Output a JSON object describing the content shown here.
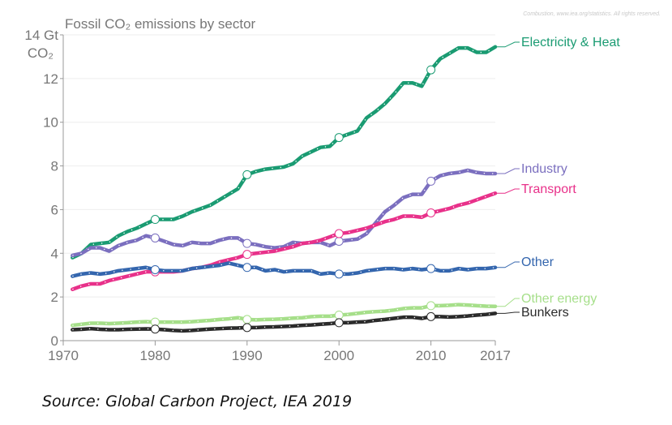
{
  "credit": "Combustion, www.iea.org/statistics. All rights reserved.",
  "source": "Source: Global Carbon Project, IEA 2019",
  "chart_data": {
    "type": "line",
    "title": "Fossil CO₂ emissions by sector",
    "ylabel_line1": "Gt",
    "ylabel_line2": "CO₂",
    "ylim": [
      0,
      14
    ],
    "xlim": [
      1970,
      2017
    ],
    "y_ticks": [
      "0",
      "2",
      "4",
      "6",
      "8",
      "10",
      "12",
      "14"
    ],
    "x_ticks": [
      "1970",
      "1980",
      "1990",
      "2000",
      "2010",
      "2017"
    ],
    "grid": true,
    "legend": "right (inline labels)",
    "x": [
      1971,
      1972,
      1973,
      1974,
      1975,
      1976,
      1977,
      1978,
      1979,
      1980,
      1981,
      1982,
      1983,
      1984,
      1985,
      1986,
      1987,
      1988,
      1989,
      1990,
      1991,
      1992,
      1993,
      1994,
      1995,
      1996,
      1997,
      1998,
      1999,
      2000,
      2001,
      2002,
      2003,
      2004,
      2005,
      2006,
      2007,
      2008,
      2009,
      2010,
      2011,
      2012,
      2013,
      2014,
      2015,
      2016,
      2017
    ],
    "series": [
      {
        "name": "Electricity & Heat",
        "color": "#1a9b72",
        "values": [
          3.8,
          4.0,
          4.4,
          4.45,
          4.5,
          4.8,
          5.0,
          5.15,
          5.35,
          5.55,
          5.55,
          5.55,
          5.7,
          5.9,
          6.05,
          6.2,
          6.45,
          6.7,
          6.95,
          7.6,
          7.75,
          7.85,
          7.9,
          7.95,
          8.1,
          8.45,
          8.65,
          8.85,
          8.9,
          9.3,
          9.45,
          9.6,
          10.2,
          10.5,
          10.85,
          11.3,
          11.8,
          11.8,
          11.65,
          12.4,
          12.9,
          13.15,
          13.4,
          13.4,
          13.2,
          13.2,
          13.45
        ]
      },
      {
        "name": "Industry",
        "color": "#7b6fbf",
        "values": [
          3.9,
          4.0,
          4.25,
          4.25,
          4.1,
          4.35,
          4.5,
          4.6,
          4.8,
          4.7,
          4.55,
          4.4,
          4.35,
          4.5,
          4.45,
          4.45,
          4.6,
          4.7,
          4.7,
          4.45,
          4.4,
          4.3,
          4.25,
          4.3,
          4.5,
          4.45,
          4.5,
          4.5,
          4.35,
          4.55,
          4.6,
          4.65,
          4.9,
          5.4,
          5.9,
          6.2,
          6.55,
          6.7,
          6.7,
          7.3,
          7.55,
          7.65,
          7.7,
          7.8,
          7.7,
          7.65,
          7.65
        ]
      },
      {
        "name": "Transport",
        "color": "#e8318a",
        "values": [
          2.35,
          2.5,
          2.6,
          2.6,
          2.75,
          2.85,
          2.95,
          3.05,
          3.15,
          3.15,
          3.15,
          3.15,
          3.2,
          3.3,
          3.35,
          3.45,
          3.6,
          3.7,
          3.8,
          3.95,
          4.0,
          4.05,
          4.1,
          4.2,
          4.3,
          4.45,
          4.5,
          4.6,
          4.75,
          4.9,
          4.95,
          5.05,
          5.15,
          5.3,
          5.45,
          5.55,
          5.7,
          5.7,
          5.65,
          5.85,
          5.95,
          6.05,
          6.2,
          6.3,
          6.45,
          6.6,
          6.75
        ]
      },
      {
        "name": "Other",
        "color": "#3466ae",
        "values": [
          2.95,
          3.05,
          3.1,
          3.05,
          3.1,
          3.2,
          3.25,
          3.3,
          3.35,
          3.25,
          3.2,
          3.2,
          3.2,
          3.3,
          3.35,
          3.4,
          3.45,
          3.55,
          3.45,
          3.35,
          3.35,
          3.2,
          3.25,
          3.15,
          3.2,
          3.2,
          3.2,
          3.05,
          3.1,
          3.05,
          3.05,
          3.1,
          3.2,
          3.25,
          3.3,
          3.3,
          3.25,
          3.3,
          3.25,
          3.3,
          3.2,
          3.2,
          3.3,
          3.25,
          3.3,
          3.3,
          3.35
        ]
      },
      {
        "name": "Other energy",
        "color": "#a6df8a",
        "values": [
          0.7,
          0.75,
          0.8,
          0.8,
          0.78,
          0.8,
          0.82,
          0.85,
          0.87,
          0.85,
          0.85,
          0.85,
          0.85,
          0.87,
          0.9,
          0.93,
          0.97,
          1.0,
          1.05,
          0.97,
          0.95,
          0.97,
          0.98,
          1.0,
          1.03,
          1.05,
          1.1,
          1.12,
          1.12,
          1.17,
          1.2,
          1.25,
          1.3,
          1.33,
          1.35,
          1.4,
          1.47,
          1.5,
          1.5,
          1.6,
          1.6,
          1.62,
          1.65,
          1.63,
          1.6,
          1.58,
          1.57
        ]
      },
      {
        "name": "Bunkers",
        "color": "#2b2b2b",
        "values": [
          0.5,
          0.52,
          0.55,
          0.52,
          0.5,
          0.5,
          0.52,
          0.53,
          0.54,
          0.53,
          0.5,
          0.47,
          0.45,
          0.47,
          0.5,
          0.53,
          0.55,
          0.57,
          0.58,
          0.6,
          0.6,
          0.62,
          0.63,
          0.65,
          0.67,
          0.7,
          0.72,
          0.75,
          0.78,
          0.82,
          0.82,
          0.85,
          0.87,
          0.93,
          0.97,
          1.02,
          1.07,
          1.07,
          1.02,
          1.1,
          1.1,
          1.08,
          1.1,
          1.13,
          1.17,
          1.2,
          1.25
        ]
      }
    ]
  }
}
